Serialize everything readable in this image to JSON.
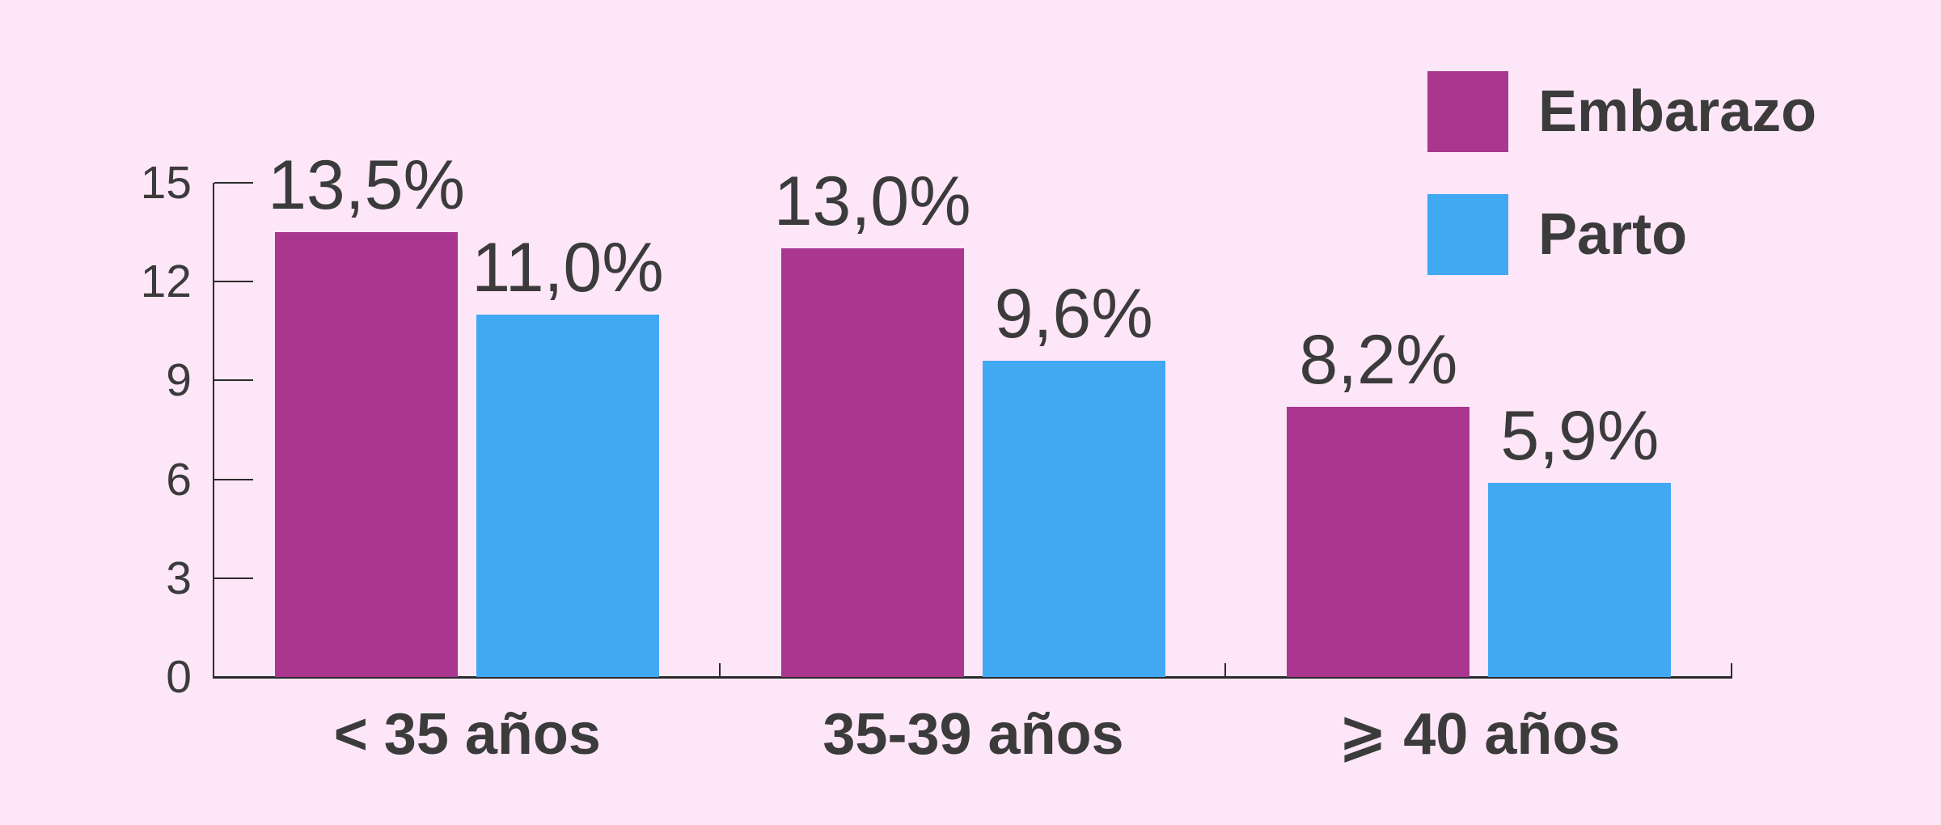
{
  "colors": {
    "background": "#fde6f8",
    "axis": "#2b2b2b",
    "text": "#3b3b3b",
    "embarazo": "#a93790",
    "parto": "#41a8f2"
  },
  "legend": {
    "items": [
      {
        "label": "Embarazo",
        "color": "#a93790"
      },
      {
        "label": "Parto",
        "color": "#41a8f2"
      }
    ]
  },
  "chart_data": {
    "type": "bar",
    "title": "",
    "xlabel": "",
    "ylabel": "",
    "categories": [
      "< 35 años",
      "35-39 años",
      "⩾ 40 años"
    ],
    "series": [
      {
        "name": "Embarazo",
        "color": "#a93790",
        "values": [
          13.5,
          13.0,
          8.2
        ],
        "labels": [
          "13,5%",
          "13,0%",
          "8,2%"
        ]
      },
      {
        "name": "Parto",
        "color": "#41a8f2",
        "values": [
          11.0,
          9.6,
          5.9
        ],
        "labels": [
          "11,0%",
          "9,6%",
          "5,9%"
        ]
      }
    ],
    "y_axis": {
      "ticks": [
        0,
        3,
        6,
        9,
        12,
        15
      ],
      "min": 0,
      "max": 15
    },
    "grid": false,
    "legend_position": "top-right"
  }
}
